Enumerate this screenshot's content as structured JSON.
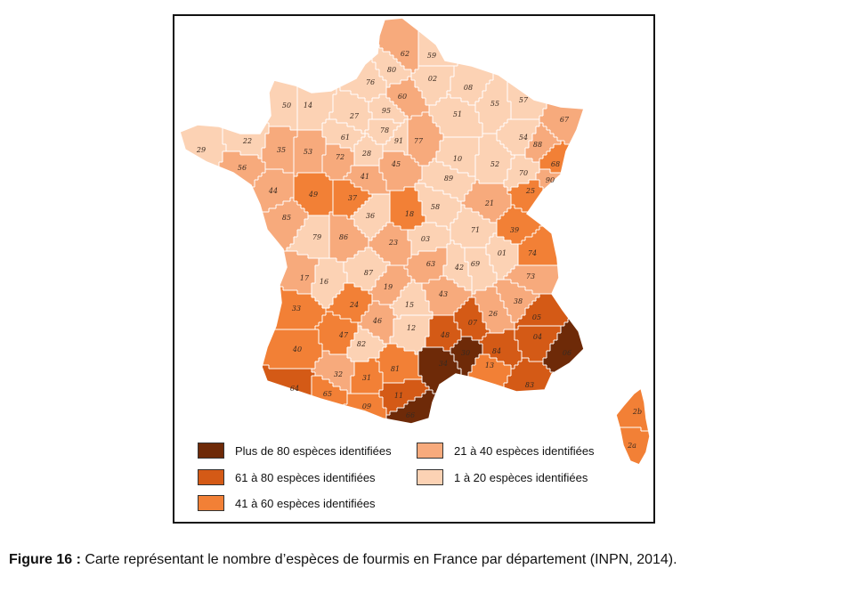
{
  "colors": {
    "cat1": "#fcd2b4",
    "cat2": "#f7aa7c",
    "cat3": "#f28036",
    "cat4": "#d45a16",
    "cat5": "#6e2a08",
    "border": "#ffffff"
  },
  "legend": [
    {
      "label": "Plus de 80 espèces identifiées",
      "color": "#6e2a08"
    },
    {
      "label": "61 à 80 espèces identifiées",
      "color": "#d45a16"
    },
    {
      "label": "41 à 60 espèces identifiées",
      "color": "#f28036"
    },
    {
      "label": "21 à 40 espèces identifiées",
      "color": "#f7aa7c"
    },
    {
      "label": "1 à 20 espèces identifiées",
      "color": "#fcd2b4"
    }
  ],
  "departments": [
    {
      "code": "62",
      "category": 2
    },
    {
      "code": "59",
      "category": 1
    },
    {
      "code": "80",
      "category": 1
    },
    {
      "code": "02",
      "category": 1
    },
    {
      "code": "08",
      "category": 1
    },
    {
      "code": "76",
      "category": 1
    },
    {
      "code": "60",
      "category": 2
    },
    {
      "code": "50",
      "category": 1
    },
    {
      "code": "14",
      "category": 1
    },
    {
      "code": "27",
      "category": 1
    },
    {
      "code": "95",
      "category": 1
    },
    {
      "code": "51",
      "category": 1
    },
    {
      "code": "55",
      "category": 1
    },
    {
      "code": "57",
      "category": 1
    },
    {
      "code": "67",
      "category": 2
    },
    {
      "code": "29",
      "category": 1
    },
    {
      "code": "22",
      "category": 1
    },
    {
      "code": "61",
      "category": 1
    },
    {
      "code": "78",
      "category": 1
    },
    {
      "code": "91",
      "category": 1
    },
    {
      "code": "77",
      "category": 2
    },
    {
      "code": "54",
      "category": 1
    },
    {
      "code": "88",
      "category": 2
    },
    {
      "code": "35",
      "category": 2
    },
    {
      "code": "53",
      "category": 2
    },
    {
      "code": "72",
      "category": 2
    },
    {
      "code": "28",
      "category": 1
    },
    {
      "code": "10",
      "category": 1
    },
    {
      "code": "52",
      "category": 1
    },
    {
      "code": "70",
      "category": 1
    },
    {
      "code": "68",
      "category": 3
    },
    {
      "code": "56",
      "category": 2
    },
    {
      "code": "41",
      "category": 2
    },
    {
      "code": "45",
      "category": 2
    },
    {
      "code": "89",
      "category": 1
    },
    {
      "code": "90",
      "category": 2
    },
    {
      "code": "44",
      "category": 2
    },
    {
      "code": "49",
      "category": 3
    },
    {
      "code": "37",
      "category": 3
    },
    {
      "code": "18",
      "category": 3
    },
    {
      "code": "58",
      "category": 1
    },
    {
      "code": "21",
      "category": 2
    },
    {
      "code": "25",
      "category": 3
    },
    {
      "code": "85",
      "category": 2
    },
    {
      "code": "79",
      "category": 1
    },
    {
      "code": "36",
      "category": 1
    },
    {
      "code": "86",
      "category": 2
    },
    {
      "code": "71",
      "category": 1
    },
    {
      "code": "39",
      "category": 3
    },
    {
      "code": "03",
      "category": 1
    },
    {
      "code": "23",
      "category": 2
    },
    {
      "code": "01",
      "category": 1
    },
    {
      "code": "74",
      "category": 3
    },
    {
      "code": "17",
      "category": 2
    },
    {
      "code": "16",
      "category": 1
    },
    {
      "code": "87",
      "category": 1
    },
    {
      "code": "63",
      "category": 2
    },
    {
      "code": "42",
      "category": 1
    },
    {
      "code": "69",
      "category": 1
    },
    {
      "code": "73",
      "category": 2
    },
    {
      "code": "33",
      "category": 3
    },
    {
      "code": "24",
      "category": 3
    },
    {
      "code": "19",
      "category": 2
    },
    {
      "code": "15",
      "category": 1
    },
    {
      "code": "43",
      "category": 2
    },
    {
      "code": "38",
      "category": 2
    },
    {
      "code": "07",
      "category": 4
    },
    {
      "code": "26",
      "category": 2
    },
    {
      "code": "05",
      "category": 4
    },
    {
      "code": "47",
      "category": 3
    },
    {
      "code": "46",
      "category": 2
    },
    {
      "code": "48",
      "category": 4
    },
    {
      "code": "12",
      "category": 1
    },
    {
      "code": "84",
      "category": 4
    },
    {
      "code": "04",
      "category": 4
    },
    {
      "code": "40",
      "category": 3
    },
    {
      "code": "82",
      "category": 1
    },
    {
      "code": "30",
      "category": 5
    },
    {
      "code": "34",
      "category": 5
    },
    {
      "code": "06",
      "category": 5
    },
    {
      "code": "32",
      "category": 2
    },
    {
      "code": "81",
      "category": 3
    },
    {
      "code": "13",
      "category": 3
    },
    {
      "code": "83",
      "category": 4
    },
    {
      "code": "64",
      "category": 4
    },
    {
      "code": "65",
      "category": 3
    },
    {
      "code": "31",
      "category": 3
    },
    {
      "code": "11",
      "category": 4
    },
    {
      "code": "09",
      "category": 3
    },
    {
      "code": "66",
      "category": 5
    },
    {
      "code": "2b",
      "category": 3
    },
    {
      "code": "2a",
      "category": 3
    }
  ],
  "caption": {
    "label": "Figure 16 :",
    "text": " Carte représentant le nombre d’espèces de fourmis en France par département (INPN, 2014)."
  }
}
